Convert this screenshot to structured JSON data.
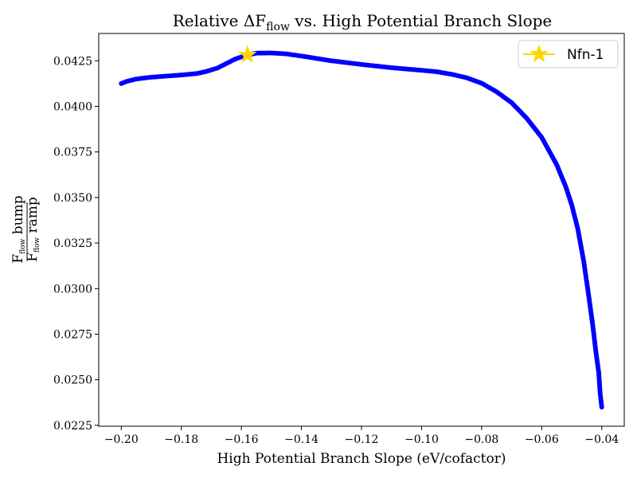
{
  "chart_data": {
    "type": "scatter",
    "title": {
      "prefix": "Relative ΔF",
      "sub": "flow",
      "suffix": " vs. High Potential Branch Slope"
    },
    "xlabel": "High Potential Branch Slope (eV/cofactor)",
    "ylabel": {
      "numerator_main": "F",
      "numerator_sub": "flow",
      "numerator_rest": " bump",
      "denominator_main": "F",
      "denominator_sub": "flow",
      "denominator_rest": " ramp"
    },
    "xlim": [
      -0.2075,
      -0.0325
    ],
    "ylim": [
      0.02245,
      0.044
    ],
    "x_ticks": [
      -0.2,
      -0.18,
      -0.16,
      -0.14,
      -0.12,
      -0.1,
      -0.08,
      -0.06,
      -0.04
    ],
    "x_tick_labels": [
      "−0.20",
      "−0.18",
      "−0.16",
      "−0.14",
      "−0.12",
      "−0.10",
      "−0.08",
      "−0.06",
      "−0.04"
    ],
    "y_ticks": [
      0.0225,
      0.025,
      0.0275,
      0.03,
      0.0325,
      0.035,
      0.0375,
      0.04,
      0.0425
    ],
    "y_tick_labels": [
      "0.0225",
      "0.0250",
      "0.0275",
      "0.0300",
      "0.0325",
      "0.0350",
      "0.0375",
      "0.0400",
      "0.0425"
    ],
    "grid": false,
    "legend": {
      "position": "top-right",
      "entries": [
        {
          "label": "Nfn-1",
          "marker": "star",
          "color": "#ffd700"
        }
      ]
    },
    "series": [
      {
        "color": "#0000ff",
        "marker": "circle",
        "points": [
          [
            -0.2,
            0.04125
          ],
          [
            -0.198,
            0.04138
          ],
          [
            -0.195,
            0.0415
          ],
          [
            -0.19,
            0.0416
          ],
          [
            -0.185,
            0.04166
          ],
          [
            -0.18,
            0.04172
          ],
          [
            -0.175,
            0.0418
          ],
          [
            -0.172,
            0.0419
          ],
          [
            -0.168,
            0.0421
          ],
          [
            -0.165,
            0.04235
          ],
          [
            -0.162,
            0.0426
          ],
          [
            -0.158,
            0.04282
          ],
          [
            -0.155,
            0.04292
          ],
          [
            -0.15,
            0.04293
          ],
          [
            -0.145,
            0.04288
          ],
          [
            -0.14,
            0.04276
          ],
          [
            -0.13,
            0.0425
          ],
          [
            -0.12,
            0.0423
          ],
          [
            -0.11,
            0.04212
          ],
          [
            -0.1,
            0.04198
          ],
          [
            -0.095,
            0.0419
          ],
          [
            -0.09,
            0.04176
          ],
          [
            -0.085,
            0.04157
          ],
          [
            -0.08,
            0.04127
          ],
          [
            -0.075,
            0.0408
          ],
          [
            -0.07,
            0.0402
          ],
          [
            -0.065,
            0.03935
          ],
          [
            -0.06,
            0.0383
          ],
          [
            -0.055,
            0.0368
          ],
          [
            -0.052,
            0.0356
          ],
          [
            -0.05,
            0.0346
          ],
          [
            -0.048,
            0.0333
          ],
          [
            -0.046,
            0.0315
          ],
          [
            -0.0445,
            0.0298
          ],
          [
            -0.043,
            0.028
          ],
          [
            -0.042,
            0.0266
          ],
          [
            -0.041,
            0.0254
          ],
          [
            -0.0405,
            0.0242
          ],
          [
            -0.04,
            0.0235
          ]
        ]
      }
    ],
    "highlight": {
      "label": "Nfn-1",
      "x": -0.158,
      "y": 0.04282,
      "color": "#ffd700",
      "marker": "star"
    }
  }
}
